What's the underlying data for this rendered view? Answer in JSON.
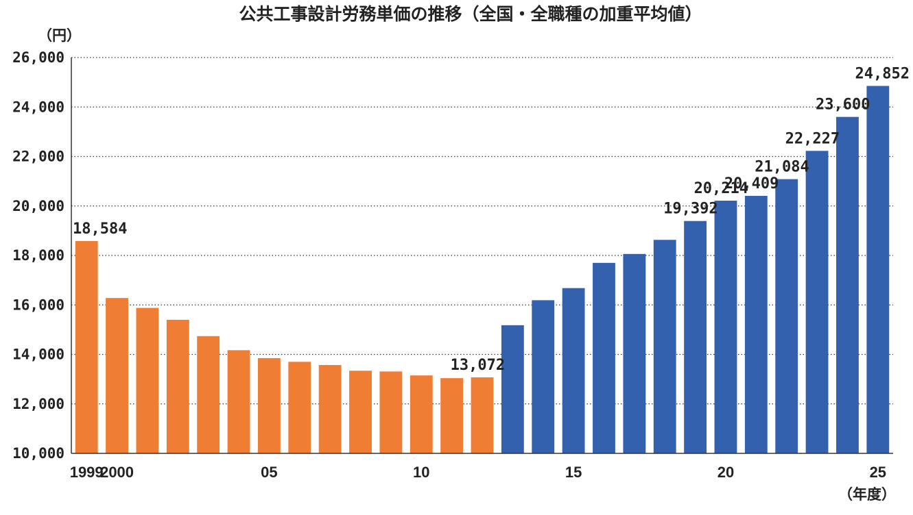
{
  "chart_data": {
    "type": "bar",
    "title": "公共工事設計労務単価の推移（全国・全職種の加重平均値）",
    "ylabel": "（円）",
    "xlabel": "（年度）",
    "ylim": [
      10000,
      26000
    ],
    "yticks": [
      10000,
      12000,
      14000,
      16000,
      18000,
      20000,
      22000,
      24000,
      26000
    ],
    "ytick_labels": [
      "10,000",
      "12,000",
      "14,000",
      "16,000",
      "18,000",
      "20,000",
      "22,000",
      "24,000",
      "26,000"
    ],
    "grid": true,
    "categories": [
      "1999",
      "2000",
      "2001",
      "2002",
      "2003",
      "2004",
      "2005",
      "2006",
      "2007",
      "2008",
      "2009",
      "2010",
      "2011",
      "2012",
      "2013",
      "2014",
      "2015",
      "2016",
      "2017",
      "2018",
      "2019",
      "2020",
      "2021",
      "2022",
      "2023",
      "2024",
      "2025"
    ],
    "x_tick_labels": [
      "1999",
      "2000",
      "",
      "",
      "",
      "",
      "05",
      "",
      "",
      "",
      "",
      "10",
      "",
      "",
      "",
      "",
      "15",
      "",
      "",
      "",
      "",
      "20",
      "",
      "",
      "",
      "",
      "25"
    ],
    "values": [
      18584,
      16280,
      15880,
      15400,
      14740,
      14170,
      13850,
      13700,
      13570,
      13340,
      13310,
      13150,
      13040,
      13072,
      15180,
      16190,
      16680,
      17700,
      18060,
      18630,
      19392,
      20214,
      20409,
      21084,
      22227,
      23600,
      24852
    ],
    "data_labels": [
      "18,584",
      "",
      "",
      "",
      "",
      "",
      "",
      "",
      "",
      "",
      "",
      "",
      "",
      "13,072",
      "",
      "",
      "",
      "",
      "",
      "",
      "19,392",
      "20,214",
      "20,409",
      "21,084",
      "22,227",
      "23,600",
      "24,852"
    ],
    "colors": [
      "#ef7d33",
      "#ef7d33",
      "#ef7d33",
      "#ef7d33",
      "#ef7d33",
      "#ef7d33",
      "#ef7d33",
      "#ef7d33",
      "#ef7d33",
      "#ef7d33",
      "#ef7d33",
      "#ef7d33",
      "#ef7d33",
      "#ef7d33",
      "#3461ad",
      "#3461ad",
      "#3461ad",
      "#3461ad",
      "#3461ad",
      "#3461ad",
      "#3461ad",
      "#3461ad",
      "#3461ad",
      "#3461ad",
      "#3461ad",
      "#3461ad",
      "#3461ad"
    ]
  }
}
